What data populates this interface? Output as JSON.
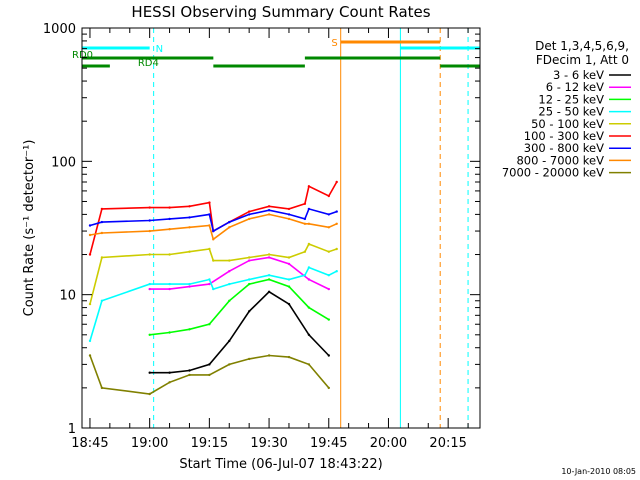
{
  "chart_data": {
    "type": "line",
    "title": "HESSI Observing Summary Count Rates",
    "xlabel": "Start Time (06-Jul-07 18:43:22)",
    "ylabel": "Count Rate (s⁻¹ detector⁻¹)",
    "yscale": "log",
    "ylim": [
      1,
      1000
    ],
    "xlim": [
      "18:43",
      "20:23"
    ],
    "x_ticks": [
      "18:45",
      "19:00",
      "19:15",
      "19:30",
      "19:45",
      "20:00",
      "20:15"
    ],
    "y_ticks": [
      "1",
      "10",
      "100",
      "1000"
    ],
    "legend_header": [
      "Det 1,3,4,5,6,9,",
      "FDecim 1, Att 0"
    ],
    "legend_position": "right",
    "series": [
      {
        "name": "3 - 6 keV",
        "color": "#000000",
        "points": [
          [
            "19:00",
            2.6
          ],
          [
            "19:05",
            2.6
          ],
          [
            "19:10",
            2.7
          ],
          [
            "19:15",
            3.0
          ],
          [
            "19:20",
            4.5
          ],
          [
            "19:25",
            7.5
          ],
          [
            "19:30",
            10.5
          ],
          [
            "19:35",
            8.5
          ],
          [
            "19:40",
            5.0
          ],
          [
            "19:45",
            3.5
          ]
        ]
      },
      {
        "name": "6 - 12 keV",
        "color": "#ff00ff",
        "points": [
          [
            "19:00",
            11
          ],
          [
            "19:05",
            11
          ],
          [
            "19:10",
            11.5
          ],
          [
            "19:15",
            12
          ],
          [
            "19:20",
            15
          ],
          [
            "19:25",
            18
          ],
          [
            "19:30",
            19
          ],
          [
            "19:35",
            17
          ],
          [
            "19:40",
            13
          ],
          [
            "19:45",
            11
          ]
        ]
      },
      {
        "name": "12 - 25 keV",
        "color": "#00ff00",
        "points": [
          [
            "19:00",
            5.0
          ],
          [
            "19:05",
            5.2
          ],
          [
            "19:10",
            5.5
          ],
          [
            "19:15",
            6
          ],
          [
            "19:20",
            9
          ],
          [
            "19:25",
            12
          ],
          [
            "19:30",
            13
          ],
          [
            "19:35",
            11.5
          ],
          [
            "19:40",
            8
          ],
          [
            "19:45",
            6.5
          ]
        ]
      },
      {
        "name": "25 - 50 keV",
        "color": "#00ffff",
        "points": [
          [
            "18:45",
            4.5
          ],
          [
            "18:48",
            9
          ],
          [
            "19:00",
            12
          ],
          [
            "19:05",
            12
          ],
          [
            "19:10",
            12
          ],
          [
            "19:15",
            13
          ],
          [
            "19:16",
            11
          ],
          [
            "19:20",
            12
          ],
          [
            "19:25",
            13
          ],
          [
            "19:30",
            14
          ],
          [
            "19:35",
            13
          ],
          [
            "19:39",
            14
          ],
          [
            "19:40",
            16
          ],
          [
            "19:45",
            14
          ],
          [
            "19:47",
            15
          ]
        ]
      },
      {
        "name": "50 - 100 keV",
        "color": "#cccc00",
        "points": [
          [
            "18:45",
            8.5
          ],
          [
            "18:48",
            19
          ],
          [
            "19:00",
            20
          ],
          [
            "19:05",
            20
          ],
          [
            "19:10",
            21
          ],
          [
            "19:15",
            22
          ],
          [
            "19:16",
            18
          ],
          [
            "19:20",
            18
          ],
          [
            "19:25",
            19
          ],
          [
            "19:30",
            20
          ],
          [
            "19:35",
            19
          ],
          [
            "19:39",
            21
          ],
          [
            "19:40",
            24
          ],
          [
            "19:45",
            21
          ],
          [
            "19:47",
            22
          ]
        ]
      },
      {
        "name": "100 - 300 keV",
        "color": "#ff0000",
        "points": [
          [
            "18:45",
            20
          ],
          [
            "18:48",
            44
          ],
          [
            "19:00",
            45
          ],
          [
            "19:05",
            45
          ],
          [
            "19:10",
            46
          ],
          [
            "19:15",
            49
          ],
          [
            "19:16",
            30
          ],
          [
            "19:20",
            35
          ],
          [
            "19:25",
            42
          ],
          [
            "19:30",
            46
          ],
          [
            "19:35",
            44
          ],
          [
            "19:39",
            48
          ],
          [
            "19:40",
            65
          ],
          [
            "19:45",
            55
          ],
          [
            "19:47",
            70
          ]
        ]
      },
      {
        "name": "300 - 800 keV",
        "color": "#0000ff",
        "points": [
          [
            "18:45",
            33
          ],
          [
            "18:48",
            35
          ],
          [
            "19:00",
            36
          ],
          [
            "19:05",
            37
          ],
          [
            "19:10",
            38
          ],
          [
            "19:15",
            40
          ],
          [
            "19:16",
            30
          ],
          [
            "19:20",
            35
          ],
          [
            "19:25",
            40
          ],
          [
            "19:30",
            43
          ],
          [
            "19:35",
            40
          ],
          [
            "19:39",
            37
          ],
          [
            "19:40",
            44
          ],
          [
            "19:45",
            40
          ],
          [
            "19:47",
            42
          ]
        ]
      },
      {
        "name": "800 - 7000 keV",
        "color": "#ff8800",
        "points": [
          [
            "18:45",
            28
          ],
          [
            "18:48",
            29
          ],
          [
            "19:00",
            30
          ],
          [
            "19:05",
            31
          ],
          [
            "19:10",
            32
          ],
          [
            "19:15",
            33
          ],
          [
            "19:16",
            26
          ],
          [
            "19:20",
            32
          ],
          [
            "19:25",
            37
          ],
          [
            "19:30",
            40
          ],
          [
            "19:35",
            37
          ],
          [
            "19:39",
            34
          ],
          [
            "19:40",
            34
          ],
          [
            "19:45",
            32
          ],
          [
            "19:47",
            34
          ]
        ]
      },
      {
        "name": "7000 - 20000 keV",
        "color": "#808000",
        "points": [
          [
            "18:45",
            3.5
          ],
          [
            "18:48",
            2.0
          ],
          [
            "19:00",
            1.8
          ],
          [
            "19:05",
            2.2
          ],
          [
            "19:10",
            2.5
          ],
          [
            "19:15",
            2.5
          ],
          [
            "19:20",
            3.0
          ],
          [
            "19:25",
            3.3
          ],
          [
            "19:30",
            3.5
          ],
          [
            "19:35",
            3.4
          ],
          [
            "19:40",
            3.0
          ],
          [
            "19:45",
            2.0
          ]
        ]
      }
    ],
    "flag_bars": [
      {
        "label": "N",
        "color": "#00ffff",
        "label_at": "19:00",
        "segments": [
          [
            "18:43",
            "19:00"
          ],
          [
            "20:03",
            "20:23"
          ]
        ]
      },
      {
        "label": "S",
        "color": "#ff8800",
        "label_at": "19:48",
        "segments": [
          [
            "19:48",
            "20:13"
          ]
        ]
      },
      {
        "label": "RD0",
        "color": "#008800",
        "label_at": "18:43",
        "segments": [
          [
            "18:43",
            "19:16"
          ],
          [
            "19:39",
            "20:13"
          ]
        ]
      },
      {
        "label": "RD4",
        "color": "#008800",
        "label_at": "18:50",
        "segments": [
          [
            "18:43",
            "18:50"
          ],
          [
            "19:16",
            "19:39"
          ],
          [
            "20:13",
            "20:23"
          ]
        ]
      }
    ],
    "vertical_markers": [
      {
        "x": "19:01",
        "color": "#00ffff",
        "style": "dashed"
      },
      {
        "x": "19:48",
        "color": "#ff8800",
        "style": "solid"
      },
      {
        "x": "20:03",
        "color": "#00ffff",
        "style": "solid"
      },
      {
        "x": "20:13",
        "color": "#ff8800",
        "style": "dashed"
      },
      {
        "x": "20:20",
        "color": "#00ffff",
        "style": "dashed"
      }
    ],
    "grid": false
  },
  "timestamp": "10-Jan-2010 08:05"
}
